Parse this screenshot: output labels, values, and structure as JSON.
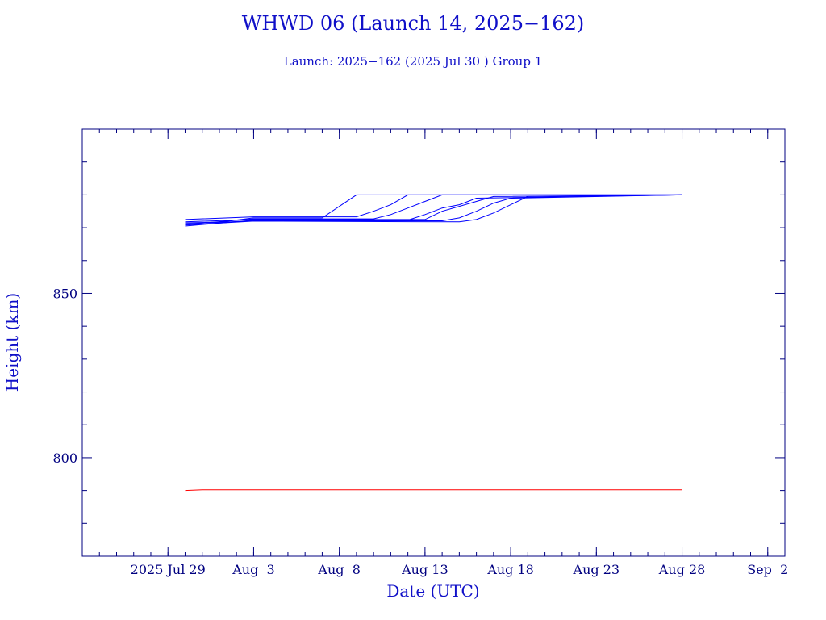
{
  "chart_data": {
    "type": "line",
    "title": "WHWD 06 (Launch 14, 2025−162)",
    "subtitle": "Launch: 2025−162  (2025 Jul 30 )  Group 1",
    "xlabel": "Date (UTC)",
    "ylabel": "Height (km)",
    "xlim": [
      "2025-07-24",
      "2025-09-03"
    ],
    "ylim": [
      770,
      900
    ],
    "x_ticks": [
      {
        "date": "2025-07-29",
        "label": "2025 Jul 29"
      },
      {
        "date": "2025-08-03",
        "label": "Aug  3"
      },
      {
        "date": "2025-08-08",
        "label": "Aug  8"
      },
      {
        "date": "2025-08-13",
        "label": "Aug 13"
      },
      {
        "date": "2025-08-18",
        "label": "Aug 18"
      },
      {
        "date": "2025-08-23",
        "label": "Aug 23"
      },
      {
        "date": "2025-08-28",
        "label": "Aug 28"
      },
      {
        "date": "2025-09-02",
        "label": "Sep  2"
      }
    ],
    "y_ticks": [
      {
        "value": 800,
        "label": "800"
      },
      {
        "value": 850,
        "label": "850"
      }
    ],
    "grid": false,
    "legend": "none",
    "colors": {
      "axes": "#000080",
      "series_main": "#0000ff",
      "series_reference": "#ff0000",
      "title": "#1010c8"
    },
    "series": [
      {
        "color": "#0000ff",
        "points": [
          [
            "2025-07-30",
            871.5
          ],
          [
            "2025-08-01",
            871.7
          ],
          [
            "2025-08-03",
            873
          ],
          [
            "2025-08-07",
            873
          ],
          [
            "2025-08-09",
            880
          ],
          [
            "2025-08-28",
            880
          ]
        ]
      },
      {
        "color": "#0000ff",
        "points": [
          [
            "2025-07-30",
            872.5
          ],
          [
            "2025-08-03",
            873.3
          ],
          [
            "2025-08-09",
            873.3
          ],
          [
            "2025-08-10",
            875
          ],
          [
            "2025-08-11",
            877
          ],
          [
            "2025-08-12",
            880
          ],
          [
            "2025-08-28",
            880
          ]
        ]
      },
      {
        "color": "#0000ff",
        "points": [
          [
            "2025-07-30",
            871
          ],
          [
            "2025-08-03",
            872.7
          ],
          [
            "2025-08-10",
            872.7
          ],
          [
            "2025-08-11",
            874
          ],
          [
            "2025-08-12",
            876
          ],
          [
            "2025-08-13",
            878
          ],
          [
            "2025-08-14",
            880
          ],
          [
            "2025-08-28",
            880
          ]
        ]
      },
      {
        "color": "#0000ff",
        "points": [
          [
            "2025-07-30",
            870.5
          ],
          [
            "2025-08-03",
            872.3
          ],
          [
            "2025-08-12",
            872.3
          ],
          [
            "2025-08-13",
            874
          ],
          [
            "2025-08-14",
            876
          ],
          [
            "2025-08-15",
            877
          ],
          [
            "2025-08-16",
            879
          ],
          [
            "2025-08-28",
            880
          ]
        ]
      },
      {
        "color": "#0000ff",
        "points": [
          [
            "2025-07-30",
            871.8
          ],
          [
            "2025-08-03",
            872.5
          ],
          [
            "2025-08-13",
            872.5
          ],
          [
            "2025-08-14",
            875
          ],
          [
            "2025-08-15",
            876.5
          ],
          [
            "2025-08-16",
            878
          ],
          [
            "2025-08-17",
            879.5
          ],
          [
            "2025-08-28",
            880
          ]
        ]
      },
      {
        "color": "#0000ff",
        "points": [
          [
            "2025-07-30",
            871.2
          ],
          [
            "2025-08-03",
            872.1
          ],
          [
            "2025-08-14",
            872.1
          ],
          [
            "2025-08-15",
            873
          ],
          [
            "2025-08-16",
            875
          ],
          [
            "2025-08-17",
            877.5
          ],
          [
            "2025-08-18",
            879
          ],
          [
            "2025-08-28",
            880
          ]
        ]
      },
      {
        "color": "#0000ff",
        "points": [
          [
            "2025-07-30",
            870.8
          ],
          [
            "2025-08-03",
            872
          ],
          [
            "2025-08-15",
            871.8
          ],
          [
            "2025-08-16",
            872.5
          ],
          [
            "2025-08-17",
            874.5
          ],
          [
            "2025-08-18",
            877
          ],
          [
            "2025-08-19",
            879.5
          ],
          [
            "2025-08-28",
            880
          ]
        ]
      },
      {
        "color": "#ff0000",
        "points": [
          [
            "2025-07-30",
            790
          ],
          [
            "2025-07-31",
            790.2
          ],
          [
            "2025-08-28",
            790.2
          ]
        ]
      }
    ]
  }
}
